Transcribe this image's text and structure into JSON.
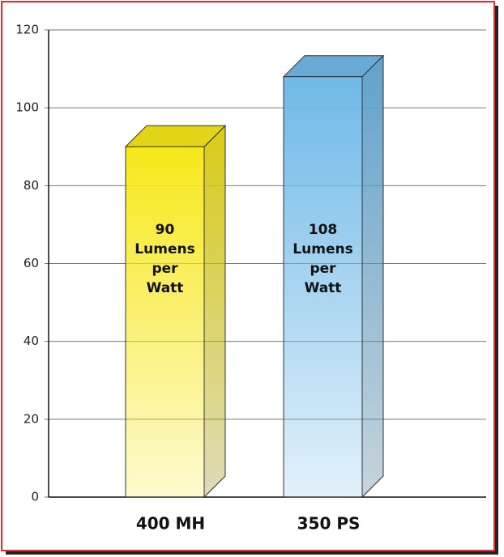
{
  "chart_data": {
    "type": "bar3d",
    "categories": [
      "400 MH",
      "350 PS"
    ],
    "values": [
      90,
      108
    ],
    "value_labels": [
      [
        "90",
        "Lumens",
        "per",
        "Watt"
      ],
      [
        "108",
        "Lumens",
        "per",
        "Watt"
      ]
    ],
    "colors": [
      "#f7e81a",
      "#6fb9e8"
    ],
    "ylim": [
      0,
      120
    ],
    "yticks": [
      0,
      20,
      40,
      60,
      80,
      100,
      120
    ],
    "grid": true
  }
}
